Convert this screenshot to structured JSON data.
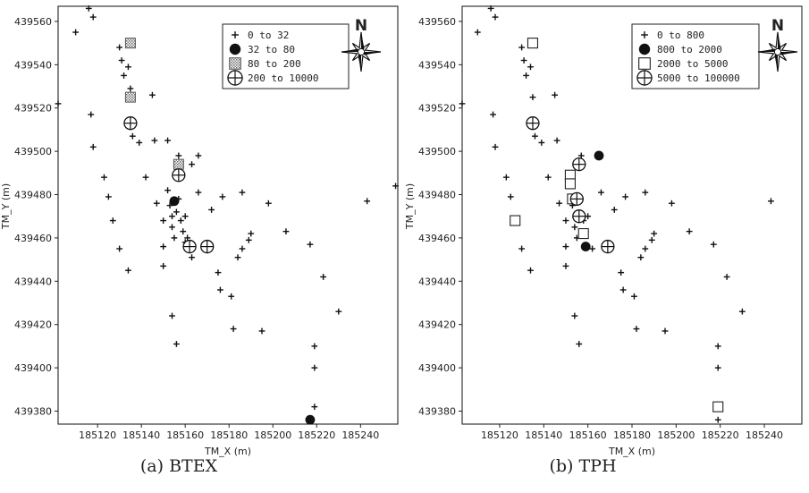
{
  "chart_data": [
    {
      "type": "scatter",
      "id": "a",
      "caption": "(a) BTEX",
      "xlabel": "TM_X (m)",
      "ylabel": "TM_Y (m)",
      "xlim": [
        185102,
        185257
      ],
      "ylim": [
        439374,
        439567
      ],
      "xticks": [
        185120,
        185140,
        185160,
        185180,
        185200,
        185220,
        185240
      ],
      "yticks": [
        439380,
        439400,
        439420,
        439440,
        439460,
        439480,
        439500,
        439520,
        439540,
        439560
      ],
      "grid": false,
      "legend_position": "top-right",
      "north_arrow": "N",
      "series": [
        {
          "name": "0 to 32",
          "marker": "plus",
          "points": [
            [
              185102,
              439522
            ],
            [
              185110,
              439555
            ],
            [
              185116,
              439566
            ],
            [
              185118,
              439562
            ],
            [
              185117,
              439517
            ],
            [
              185118,
              439502
            ],
            [
              185123,
              439488
            ],
            [
              185125,
              439479
            ],
            [
              185127,
              439468
            ],
            [
              185130,
              439455
            ],
            [
              185134,
              439445
            ],
            [
              185130,
              439548
            ],
            [
              185131,
              439542
            ],
            [
              185132,
              439535
            ],
            [
              185134,
              439539
            ],
            [
              185135,
              439529
            ],
            [
              185136,
              439507
            ],
            [
              185139,
              439504
            ],
            [
              185142,
              439488
            ],
            [
              185145,
              439526
            ],
            [
              185146,
              439505
            ],
            [
              185147,
              439476
            ],
            [
              185150,
              439468
            ],
            [
              185150,
              439447
            ],
            [
              185150,
              439456
            ],
            [
              185152,
              439482
            ],
            [
              185152,
              439505
            ],
            [
              185153,
              439475
            ],
            [
              185154,
              439470
            ],
            [
              185154,
              439465
            ],
            [
              185155,
              439460
            ],
            [
              185156,
              439472
            ],
            [
              185157,
              439478
            ],
            [
              185157,
              439498
            ],
            [
              185158,
              439468
            ],
            [
              185159,
              439463
            ],
            [
              185160,
              439470
            ],
            [
              185160,
              439458
            ],
            [
              185161,
              439460
            ],
            [
              185162,
              439455
            ],
            [
              185163,
              439451
            ],
            [
              185163,
              439494
            ],
            [
              185166,
              439498
            ],
            [
              185166,
              439481
            ],
            [
              185154,
              439424
            ],
            [
              185156,
              439411
            ],
            [
              185172,
              439473
            ],
            [
              185175,
              439444
            ],
            [
              185176,
              439436
            ],
            [
              185177,
              439479
            ],
            [
              185181,
              439433
            ],
            [
              185182,
              439418
            ],
            [
              185184,
              439451
            ],
            [
              185186,
              439481
            ],
            [
              185186,
              439455
            ],
            [
              185189,
              439459
            ],
            [
              185190,
              439462
            ],
            [
              185195,
              439417
            ],
            [
              185198,
              439476
            ],
            [
              185206,
              439463
            ],
            [
              185217,
              439457
            ],
            [
              185219,
              439410
            ],
            [
              185219,
              439400
            ],
            [
              185219,
              439382
            ],
            [
              185223,
              439442
            ],
            [
              185230,
              439426
            ],
            [
              185243,
              439477
            ],
            [
              185256,
              439484
            ]
          ]
        },
        {
          "name": "32 to 80",
          "marker": "filled-circle",
          "points": [
            [
              185155,
              439477
            ],
            [
              185217,
              439376
            ]
          ]
        },
        {
          "name": "80 to 200",
          "marker": "shaded-square",
          "points": [
            [
              185135,
              439550
            ],
            [
              185135,
              439525
            ],
            [
              185157,
              439494
            ]
          ]
        },
        {
          "name": "200 to 10000",
          "marker": "crossed-circle",
          "points": [
            [
              185135,
              439513
            ],
            [
              185157,
              439489
            ],
            [
              185162,
              439456
            ],
            [
              185170,
              439456
            ]
          ]
        }
      ]
    },
    {
      "type": "scatter",
      "id": "b",
      "caption": "(b) TPH",
      "xlabel": "TM_X (m)",
      "ylabel": "TM_Y (m)",
      "xlim": [
        185103,
        185257
      ],
      "ylim": [
        439374,
        439567
      ],
      "xticks": [
        185120,
        185140,
        185160,
        185180,
        185200,
        185220,
        185240
      ],
      "yticks": [
        439380,
        439400,
        439420,
        439440,
        439460,
        439480,
        439500,
        439520,
        439540,
        439560
      ],
      "grid": false,
      "legend_position": "top-right",
      "north_arrow": "N",
      "series": [
        {
          "name": "0 to 800",
          "marker": "plus",
          "points": [
            [
              185103,
              439522
            ],
            [
              185110,
              439555
            ],
            [
              185116,
              439566
            ],
            [
              185118,
              439562
            ],
            [
              185117,
              439517
            ],
            [
              185118,
              439502
            ],
            [
              185123,
              439488
            ],
            [
              185125,
              439479
            ],
            [
              185130,
              439455
            ],
            [
              185134,
              439445
            ],
            [
              185130,
              439548
            ],
            [
              185131,
              439542
            ],
            [
              185132,
              439535
            ],
            [
              185134,
              439539
            ],
            [
              185135,
              439525
            ],
            [
              185136,
              439507
            ],
            [
              185139,
              439504
            ],
            [
              185142,
              439488
            ],
            [
              185145,
              439526
            ],
            [
              185146,
              439505
            ],
            [
              185147,
              439476
            ],
            [
              185150,
              439468
            ],
            [
              185150,
              439447
            ],
            [
              185150,
              439456
            ],
            [
              185153,
              439475
            ],
            [
              185154,
              439465
            ],
            [
              185155,
              439460
            ],
            [
              185157,
              439498
            ],
            [
              185158,
              439468
            ],
            [
              185159,
              439463
            ],
            [
              185160,
              439470
            ],
            [
              185162,
              439455
            ],
            [
              185166,
              439481
            ],
            [
              185154,
              439424
            ],
            [
              185156,
              439411
            ],
            [
              185172,
              439473
            ],
            [
              185175,
              439444
            ],
            [
              185176,
              439436
            ],
            [
              185177,
              439479
            ],
            [
              185181,
              439433
            ],
            [
              185182,
              439418
            ],
            [
              185184,
              439451
            ],
            [
              185186,
              439481
            ],
            [
              185186,
              439455
            ],
            [
              185189,
              439459
            ],
            [
              185190,
              439462
            ],
            [
              185195,
              439417
            ],
            [
              185198,
              439476
            ],
            [
              185206,
              439463
            ],
            [
              185217,
              439457
            ],
            [
              185219,
              439410
            ],
            [
              185219,
              439400
            ],
            [
              185219,
              439376
            ],
            [
              185223,
              439442
            ],
            [
              185230,
              439426
            ],
            [
              185243,
              439477
            ]
          ]
        },
        {
          "name": "800 to 2000",
          "marker": "filled-circle",
          "points": [
            [
              185165,
              439498
            ],
            [
              185159,
              439456
            ]
          ]
        },
        {
          "name": "2000 to 5000",
          "marker": "open-square",
          "points": [
            [
              185135,
              439550
            ],
            [
              185127,
              439468
            ],
            [
              185152,
              439489
            ],
            [
              185152,
              439485
            ],
            [
              185153,
              439478
            ],
            [
              185158,
              439462
            ],
            [
              185219,
              439382
            ]
          ]
        },
        {
          "name": "5000 to 100000",
          "marker": "crossed-circle",
          "points": [
            [
              185135,
              439513
            ],
            [
              185156,
              439494
            ],
            [
              185155,
              439478
            ],
            [
              185156,
              439470
            ],
            [
              185169,
              439456
            ]
          ]
        }
      ]
    }
  ]
}
